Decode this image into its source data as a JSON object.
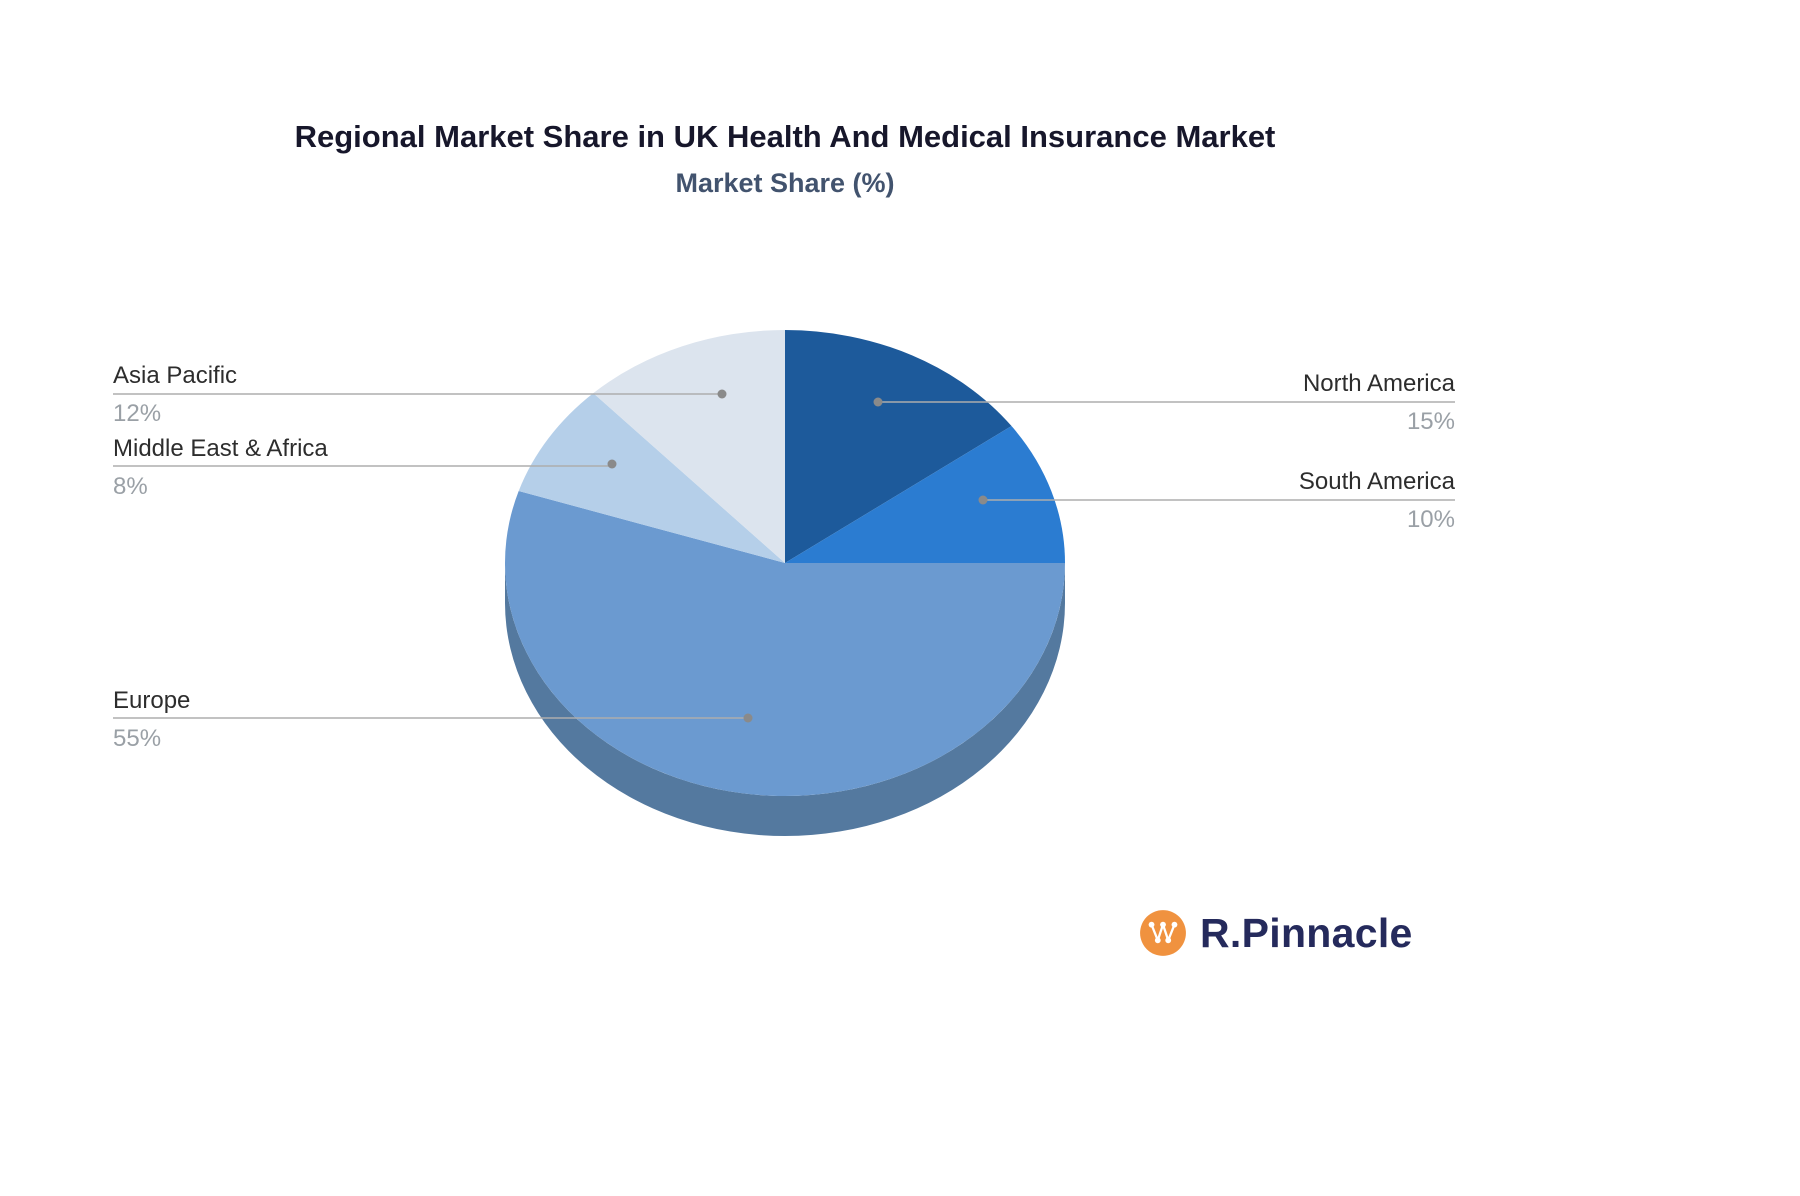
{
  "title": "Regional Market Share in UK Health And Medical Insurance Market",
  "subtitle": "Market Share (%)",
  "logo": {
    "text": "R.Pinnacle",
    "icon": "network-nodes-icon",
    "icon_color": "#f0923f",
    "text_color": "#252a5c"
  },
  "chart_data": {
    "type": "pie",
    "title": "Regional Market Share in UK Health And Medical Insurance Market",
    "subtitle": "Market Share (%)",
    "unit": "%",
    "direction": "clockwise",
    "start_angle_deg": 0,
    "style": "3d",
    "depth_color": "#54799f",
    "legend_position": "callout-labels",
    "slices": [
      {
        "label": "North America",
        "value": 15,
        "display": "15%",
        "color": "#1d5a9b"
      },
      {
        "label": "South America",
        "value": 10,
        "display": "10%",
        "color": "#2b7cd1"
      },
      {
        "label": "Europe",
        "value": 55,
        "display": "55%",
        "color": "#6b9ad0"
      },
      {
        "label": "Middle East & Africa",
        "value": 8,
        "display": "8%",
        "color": "#b5cfe9"
      },
      {
        "label": "Asia Pacific",
        "value": 12,
        "display": "12%",
        "color": "#dce4ee"
      }
    ]
  }
}
